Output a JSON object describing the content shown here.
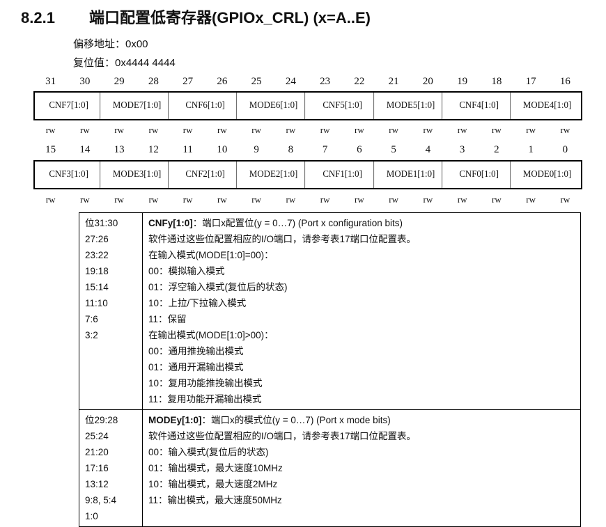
{
  "title": {
    "number": "8.2.1",
    "text": "端口配置低寄存器(GPIOx_CRL) (x=A..E)"
  },
  "offset": "偏移地址：0x00",
  "reset": "复位值：0x4444 4444",
  "register": {
    "high_bits": [
      "31",
      "30",
      "29",
      "28",
      "27",
      "26",
      "25",
      "24",
      "23",
      "22",
      "21",
      "20",
      "19",
      "18",
      "17",
      "16"
    ],
    "high_fields": [
      "CNF7[1:0]",
      "MODE7[1:0]",
      "CNF6[1:0]",
      "MODE6[1:0]",
      "CNF5[1:0]",
      "MODE5[1:0]",
      "CNF4[1:0]",
      "MODE4[1:0]"
    ],
    "low_bits": [
      "15",
      "14",
      "13",
      "12",
      "11",
      "10",
      "9",
      "8",
      "7",
      "6",
      "5",
      "4",
      "3",
      "2",
      "1",
      "0"
    ],
    "low_fields": [
      "CNF3[1:0]",
      "MODE3[1:0]",
      "CNF2[1:0]",
      "MODE2[1:0]",
      "CNF1[1:0]",
      "MODE1[1:0]",
      "CNF0[1:0]",
      "MODE0[1:0]"
    ],
    "access": "rw"
  },
  "descriptions": [
    {
      "bits": [
        "位31:30",
        "27:26",
        "23:22",
        "19:18",
        "15:14",
        "11:10",
        "7:6",
        "3:2"
      ],
      "name": "CNFy[1:0]",
      "name_desc": "：端口x配置位(y = 0…7) (Port x configuration bits)",
      "lines": [
        "软件通过这些位配置相应的I/O端口，请参考表17端口位配置表。",
        "在输入模式(MODE[1:0]=00)：",
        "00：模拟输入模式",
        "01：浮空输入模式(复位后的状态)",
        "10：上拉/下拉输入模式",
        "11：保留",
        "在输出模式(MODE[1:0]>00)：",
        "00：通用推挽输出模式",
        "01：通用开漏输出模式",
        "10：复用功能推挽输出模式",
        "11：复用功能开漏输出模式"
      ]
    },
    {
      "bits": [
        "位29:28",
        "25:24",
        "21:20",
        "17:16",
        "13:12",
        "9:8, 5:4",
        "1:0"
      ],
      "name": "MODEy[1:0]",
      "name_desc": "：端口x的模式位(y = 0…7) (Port x mode bits)",
      "lines": [
        "软件通过这些位配置相应的I/O端口，请参考表17端口位配置表。",
        "00：输入模式(复位后的状态)",
        "01：输出模式，最大速度10MHz",
        "10：输出模式，最大速度2MHz",
        "11：输出模式，最大速度50MHz"
      ]
    }
  ]
}
